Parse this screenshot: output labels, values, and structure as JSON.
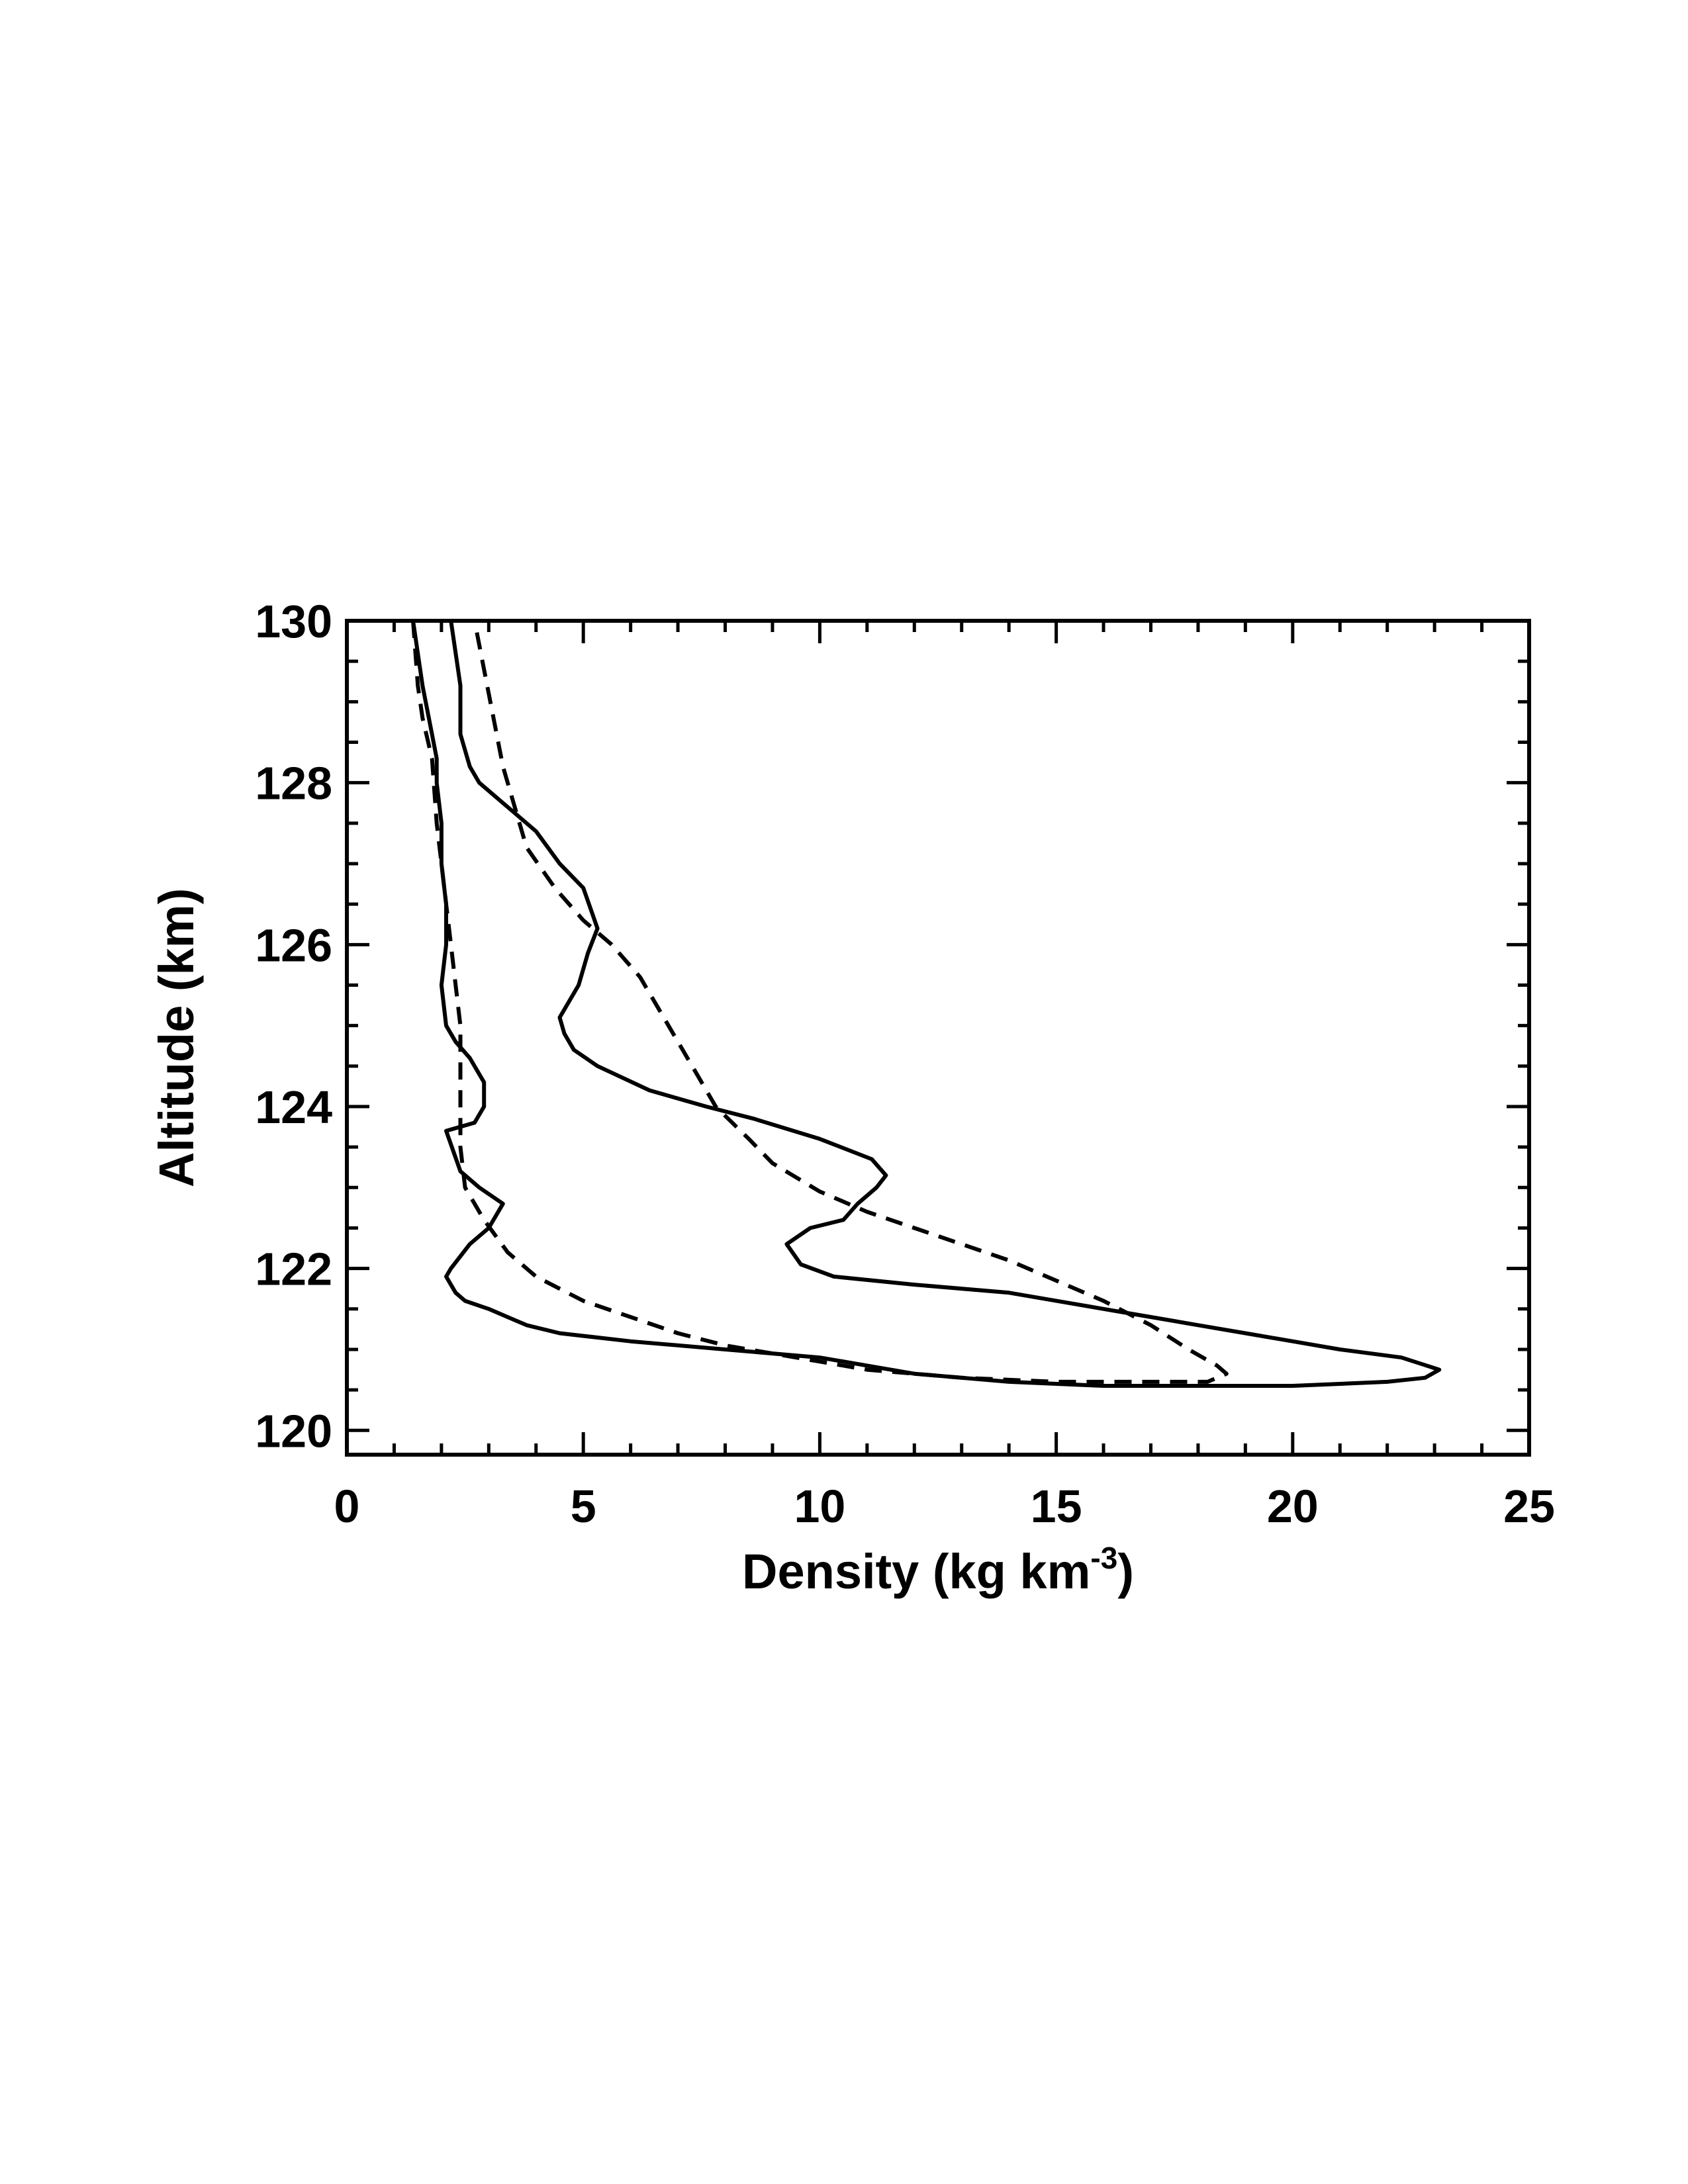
{
  "chart_data": {
    "type": "line",
    "title": "",
    "xlabel": {
      "text": "Density (kg km",
      "superscript": "-3",
      "suffix": ")"
    },
    "ylabel": "Altitude (km)",
    "xlim": [
      0,
      25
    ],
    "ylim": [
      119.7,
      130
    ],
    "x_ticks": [
      0,
      5,
      10,
      15,
      20,
      25
    ],
    "x_tick_labels": [
      "0",
      "5",
      "10",
      "15",
      "20",
      "25"
    ],
    "y_ticks": [
      120,
      122,
      124,
      126,
      128,
      130
    ],
    "y_tick_labels": [
      "120",
      "122",
      "124",
      "126",
      "128",
      "130"
    ],
    "x_minor_step": 1,
    "y_minor_step": 0.5,
    "grid": false,
    "line_color": "#000000",
    "series": [
      {
        "style": "solid",
        "points": [
          [
            1.4,
            130
          ],
          [
            1.6,
            129.2
          ],
          [
            1.8,
            128.6
          ],
          [
            1.9,
            128.3
          ],
          [
            1.9,
            128.0
          ],
          [
            2.0,
            127.5
          ],
          [
            2.0,
            127.0
          ],
          [
            2.1,
            126.5
          ],
          [
            2.1,
            126.0
          ],
          [
            2.0,
            125.5
          ],
          [
            2.1,
            125.0
          ],
          [
            2.3,
            124.8
          ],
          [
            2.6,
            124.6
          ],
          [
            2.9,
            124.3
          ],
          [
            2.9,
            124.0
          ],
          [
            2.7,
            123.8
          ],
          [
            2.1,
            123.7
          ],
          [
            2.4,
            123.2
          ],
          [
            2.8,
            123.0
          ],
          [
            3.3,
            122.8
          ],
          [
            3.0,
            122.5
          ],
          [
            2.6,
            122.3
          ],
          [
            2.2,
            122.0
          ],
          [
            2.1,
            121.9
          ],
          [
            2.3,
            121.7
          ],
          [
            2.5,
            121.6
          ],
          [
            3.0,
            121.5
          ],
          [
            3.8,
            121.3
          ],
          [
            4.5,
            121.2
          ],
          [
            6.0,
            121.1
          ],
          [
            8.0,
            121.0
          ],
          [
            10.0,
            120.9
          ],
          [
            11.0,
            120.8
          ],
          [
            12.0,
            120.7
          ],
          [
            14.0,
            120.6
          ],
          [
            16.0,
            120.55
          ],
          [
            18.0,
            120.55
          ],
          [
            20.0,
            120.55
          ],
          [
            22.0,
            120.6
          ],
          [
            22.8,
            120.65
          ],
          [
            23.1,
            120.75
          ],
          [
            22.3,
            120.9
          ],
          [
            21.0,
            121.0
          ],
          [
            20.0,
            121.1
          ],
          [
            19.0,
            121.2
          ],
          [
            18.0,
            121.3
          ],
          [
            17.0,
            121.4
          ],
          [
            16.0,
            121.5
          ],
          [
            14.0,
            121.7
          ],
          [
            12.0,
            121.8
          ],
          [
            10.3,
            121.9
          ],
          [
            9.6,
            122.05
          ],
          [
            9.3,
            122.3
          ],
          [
            9.8,
            122.5
          ],
          [
            10.5,
            122.6
          ],
          [
            10.8,
            122.8
          ],
          [
            11.2,
            123.0
          ],
          [
            11.4,
            123.15
          ],
          [
            11.1,
            123.35
          ],
          [
            10.0,
            123.6
          ],
          [
            8.6,
            123.85
          ],
          [
            7.6,
            124.0
          ],
          [
            6.4,
            124.2
          ],
          [
            5.3,
            124.5
          ],
          [
            4.8,
            124.7
          ],
          [
            4.6,
            124.9
          ],
          [
            4.5,
            125.1
          ],
          [
            4.9,
            125.5
          ],
          [
            5.1,
            125.9
          ],
          [
            5.3,
            126.2
          ],
          [
            5.0,
            126.7
          ],
          [
            4.5,
            127.0
          ],
          [
            4.0,
            127.4
          ],
          [
            3.4,
            127.7
          ],
          [
            2.8,
            128.0
          ],
          [
            2.6,
            128.2
          ],
          [
            2.4,
            128.6
          ],
          [
            2.4,
            129.2
          ],
          [
            2.2,
            130.0
          ]
        ]
      },
      {
        "style": "dashed",
        "points": [
          [
            1.4,
            130.0
          ],
          [
            1.5,
            129.2
          ],
          [
            1.6,
            128.8
          ],
          [
            1.8,
            128.3
          ],
          [
            1.9,
            127.5
          ],
          [
            2.0,
            127.0
          ],
          [
            2.1,
            126.5
          ],
          [
            2.2,
            126.0
          ],
          [
            2.3,
            125.5
          ],
          [
            2.4,
            125.0
          ],
          [
            2.4,
            124.5
          ],
          [
            2.4,
            124.0
          ],
          [
            2.4,
            123.5
          ],
          [
            2.5,
            123.0
          ],
          [
            2.9,
            122.6
          ],
          [
            3.4,
            122.2
          ],
          [
            4.0,
            121.9
          ],
          [
            5.0,
            121.6
          ],
          [
            6.0,
            121.4
          ],
          [
            7.0,
            121.2
          ],
          [
            8.0,
            121.05
          ],
          [
            9.0,
            120.95
          ],
          [
            10.0,
            120.85
          ],
          [
            11.0,
            120.75
          ],
          [
            12.0,
            120.7
          ],
          [
            13.0,
            120.65
          ],
          [
            15.0,
            120.6
          ],
          [
            17.0,
            120.6
          ],
          [
            18.2,
            120.6
          ],
          [
            18.6,
            120.7
          ],
          [
            18.4,
            120.8
          ],
          [
            17.8,
            121.0
          ],
          [
            17.0,
            121.3
          ],
          [
            16.0,
            121.6
          ],
          [
            15.0,
            121.85
          ],
          [
            14.0,
            122.1
          ],
          [
            13.0,
            122.3
          ],
          [
            12.0,
            122.5
          ],
          [
            11.0,
            122.7
          ],
          [
            10.0,
            122.95
          ],
          [
            9.0,
            123.3
          ],
          [
            8.5,
            123.6
          ],
          [
            7.8,
            124.0
          ],
          [
            7.4,
            124.4
          ],
          [
            7.0,
            124.8
          ],
          [
            6.6,
            125.2
          ],
          [
            6.2,
            125.6
          ],
          [
            5.6,
            126.0
          ],
          [
            5.0,
            126.3
          ],
          [
            4.4,
            126.7
          ],
          [
            3.8,
            127.2
          ],
          [
            3.5,
            127.8
          ],
          [
            3.3,
            128.2
          ],
          [
            3.1,
            128.8
          ],
          [
            2.9,
            129.4
          ],
          [
            2.7,
            130.0
          ]
        ]
      }
    ]
  }
}
